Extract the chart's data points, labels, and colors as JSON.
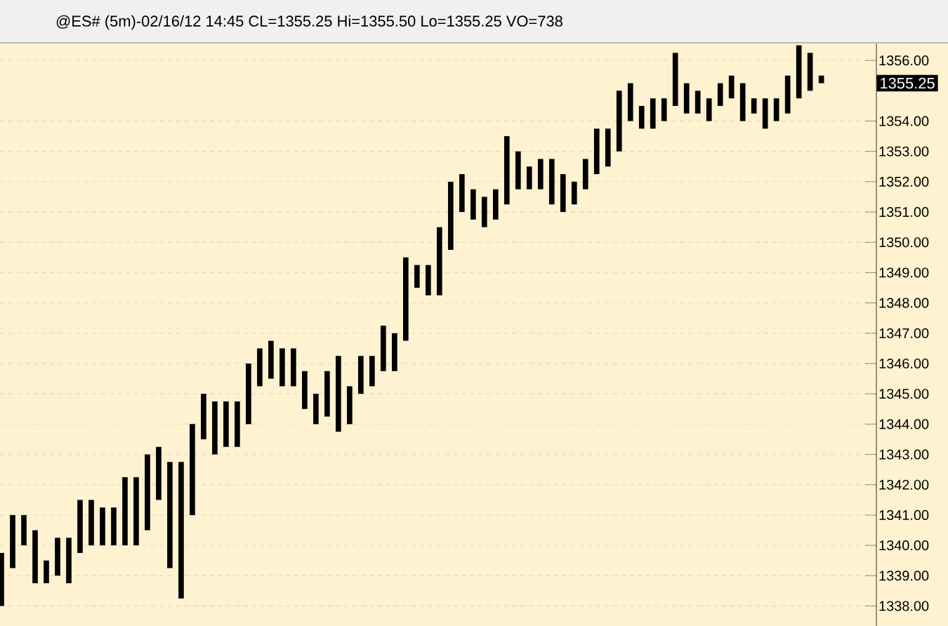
{
  "chart_data": {
    "type": "bar",
    "title": "@ES# (5m)-02/16/12 14:45 CL=1355.25 Hi=1355.50 Lo=1355.25 VO=738",
    "categories": [
      null,
      null,
      null,
      null,
      null,
      null,
      null,
      null,
      null,
      null,
      null,
      null,
      null,
      null,
      null,
      null,
      null,
      null,
      null,
      null,
      null,
      null,
      null,
      null,
      null,
      null,
      null,
      null,
      null,
      null,
      null,
      null,
      null,
      null,
      null,
      null,
      null,
      null,
      null,
      null,
      null,
      null,
      null,
      null,
      null,
      null,
      null,
      null,
      null,
      null,
      null,
      null,
      null,
      null,
      null,
      null,
      null,
      null,
      null,
      null,
      null,
      null,
      null,
      null,
      null,
      null,
      null,
      null,
      null,
      null,
      null,
      null,
      null,
      null
    ],
    "base": [
      1338,
      1339.25,
      1340,
      1338.75,
      1338.75,
      1339,
      1338.75,
      1339.75,
      1340,
      1340,
      1340,
      1340,
      1340,
      1340.5,
      1341.5,
      1339.25,
      1338.25,
      1341,
      1343.5,
      1343,
      1343.25,
      1343.25,
      1344,
      1345.25,
      1345.5,
      1345.25,
      1345.25,
      1344.5,
      1344,
      1344.25,
      1343.75,
      1344,
      1345,
      1345.25,
      1345.75,
      1345.75,
      1346.75,
      1348.5,
      1348.25,
      1348.25,
      1349.75,
      1351,
      1350.75,
      1350.5,
      1350.75,
      1351.25,
      1351.75,
      1351.75,
      1351.75,
      1351.25,
      1351,
      1351.25,
      1351.75,
      1352.25,
      1352.5,
      1353,
      1354,
      1353.75,
      1353.75,
      1354,
      1354.5,
      1354.25,
      1354.25,
      1354,
      1354.5,
      1354.75,
      1354,
      1354.25,
      1353.75,
      1354,
      1354.25,
      1354.75,
      1355,
      1355.25
    ],
    "values": [
      1.75,
      1.75,
      1,
      1.75,
      0.75,
      1.25,
      1.5,
      1.75,
      1.5,
      1.25,
      1.25,
      2.25,
      2.25,
      2.5,
      1.75,
      3.5,
      4.5,
      3,
      1.5,
      1.75,
      1.5,
      1.5,
      2,
      1.25,
      1.25,
      1.25,
      1.25,
      1.25,
      1,
      1.5,
      2.5,
      1.25,
      1.25,
      1,
      1.5,
      1.25,
      2.75,
      0.75,
      1,
      2.25,
      2.25,
      1.25,
      1,
      1,
      1,
      2.25,
      1.25,
      0.75,
      1,
      1.5,
      1.25,
      0.75,
      1,
      1.5,
      1.25,
      2,
      1.25,
      0.75,
      1,
      0.75,
      1.75,
      1,
      0.75,
      0.75,
      0.75,
      0.75,
      1.25,
      0.5,
      1,
      0.75,
      1.25,
      1.75,
      1.25,
      0.25
    ],
    "color": "#000000",
    "ylim": [
      1337.34,
      1356.56
    ],
    "yticks": [
      {
        "value": 1338,
        "label": "1338.00"
      },
      {
        "value": 1339,
        "label": "1339.00"
      },
      {
        "value": 1340,
        "label": "1340.00"
      },
      {
        "value": 1341,
        "label": "1341.00"
      },
      {
        "value": 1342,
        "label": "1342.00"
      },
      {
        "value": 1343,
        "label": "1343.00"
      },
      {
        "value": 1344,
        "label": "1344.00"
      },
      {
        "value": 1345,
        "label": "1345.00"
      },
      {
        "value": 1346,
        "label": "1346.00"
      },
      {
        "value": 1347,
        "label": "1347.00"
      },
      {
        "value": 1348,
        "label": "1348.00"
      },
      {
        "value": 1349,
        "label": "1349.00"
      },
      {
        "value": 1350,
        "label": "1350.00"
      },
      {
        "value": 1351,
        "label": "1351.00"
      },
      {
        "value": 1352,
        "label": "1352.00"
      },
      {
        "value": 1353,
        "label": "1353.00"
      },
      {
        "value": 1354,
        "label": "1354.00"
      },
      {
        "value": 1356,
        "label": "1356.00"
      }
    ],
    "annotations": [
      "1355.25"
    ],
    "grid": true
  }
}
